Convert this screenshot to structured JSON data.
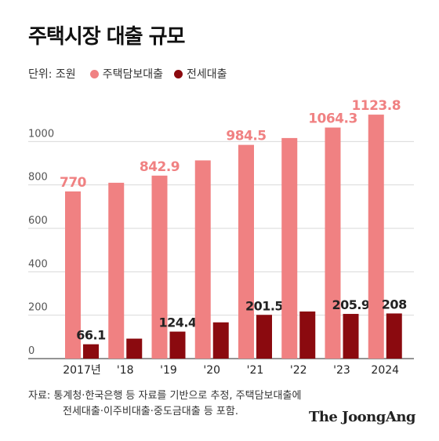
{
  "title": "주택시장 대출 규모",
  "unit": "단위: 조원",
  "source": {
    "line1": "자료: 통계청·한국은행 등 자료를 기반으로 추정, 주택담보대출에",
    "line2": "전세대출·이주비대출·중도금대출 등 포함."
  },
  "brand": "The JoongAng",
  "colors": {
    "mortgage": "#f08182",
    "jeonse": "#8b0a0f",
    "mortgage_label": "#f08182",
    "jeonse_label": "#222222"
  },
  "chart_data": {
    "type": "bar",
    "categories": [
      "2017년",
      "'18",
      "'19",
      "'20",
      "'21",
      "'22",
      "'23",
      "2024"
    ],
    "series": [
      {
        "name": "주택담보대출",
        "values": [
          770,
          810,
          842.9,
          913,
          984.5,
          1016,
          1064.3,
          1123.8
        ],
        "labels": [
          "770",
          "",
          "842.9",
          "",
          "984.5",
          "",
          "1064.3",
          "1123.8"
        ]
      },
      {
        "name": "전세대출",
        "values": [
          66.1,
          92,
          124.4,
          167,
          201.5,
          217,
          205.9,
          208
        ],
        "labels": [
          "66.1",
          "",
          "124.4",
          "",
          "201.5",
          "",
          "205.9",
          "208"
        ]
      }
    ],
    "yticks": [
      0,
      200,
      400,
      600,
      800,
      1000
    ],
    "ylim": [
      0,
      1200
    ],
    "grid": true,
    "legend": "top-left"
  }
}
